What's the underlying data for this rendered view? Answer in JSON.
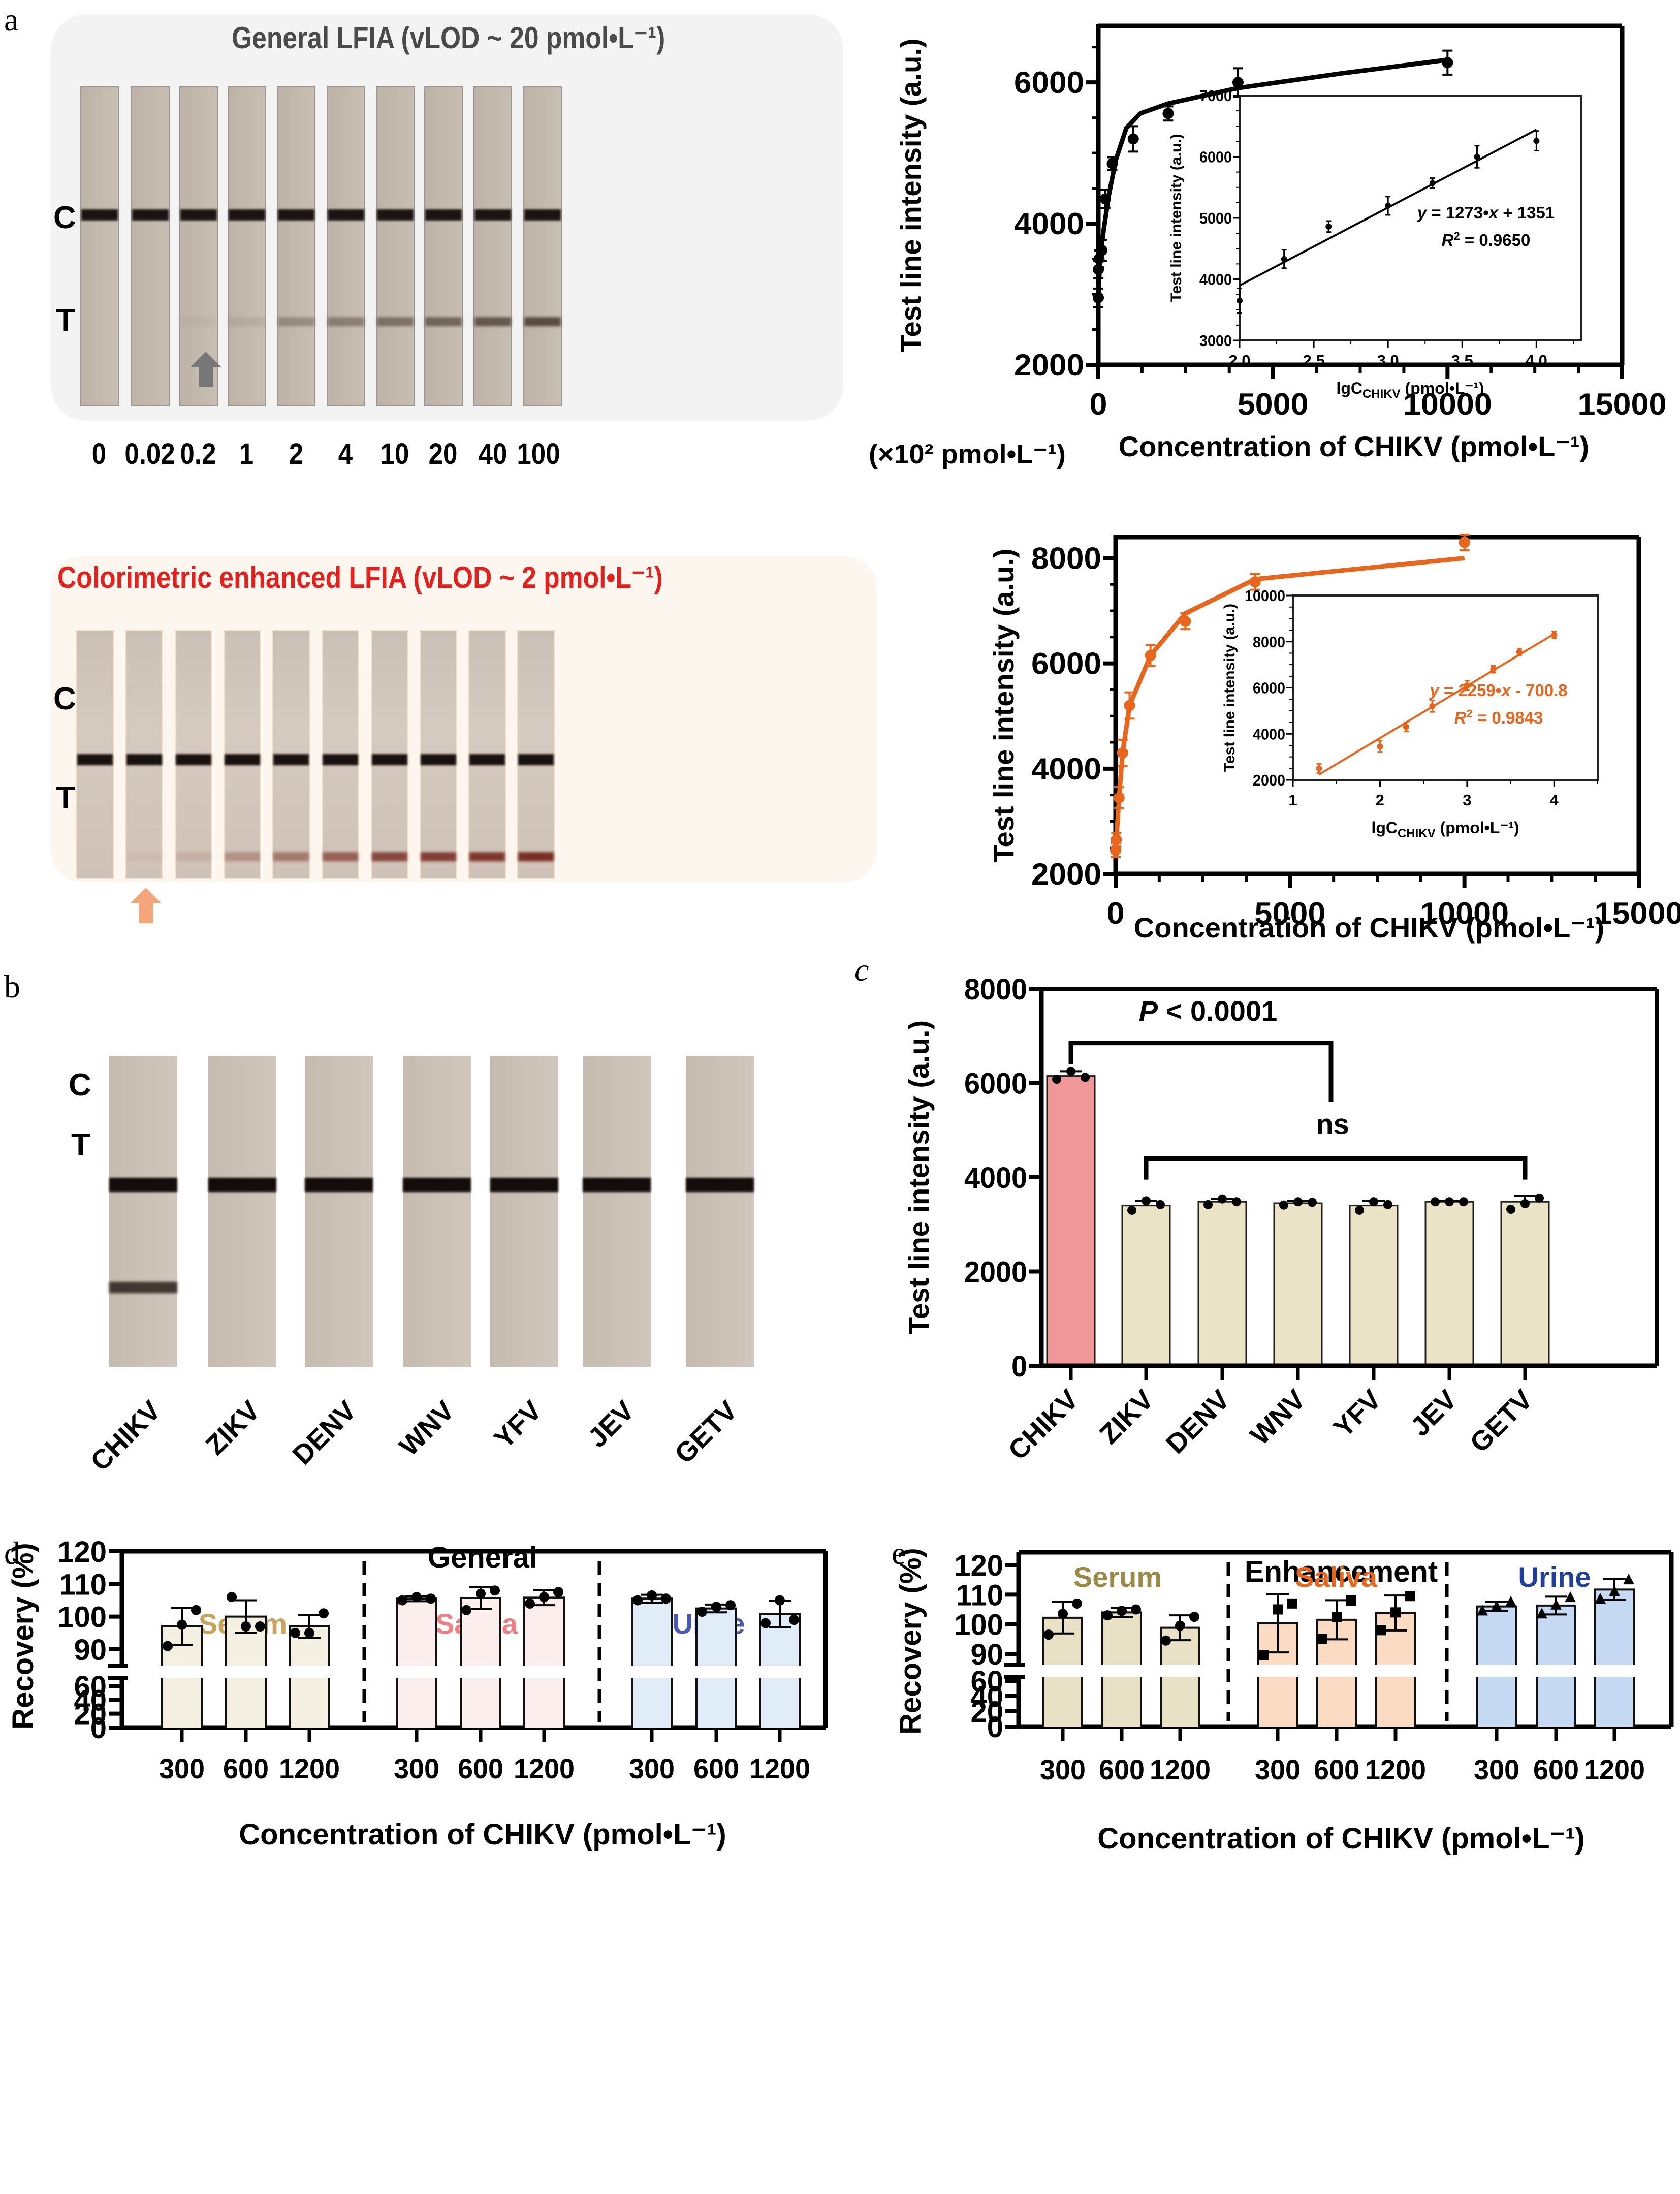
{
  "panel_labels": {
    "a": "a",
    "b": "b",
    "c": "c",
    "d": "d",
    "e": "e"
  },
  "panel_a": {
    "general_title": "General LFIA (vLOD ~ 20 pmol•L⁻¹)",
    "enhanced_title": "Colorimetric enhanced LFIA (vLOD ~ 2 pmol•L⁻¹)",
    "control_label": "C",
    "test_label": "T",
    "concentrations": [
      "0",
      "0.02",
      "0.2",
      "1",
      "2",
      "4",
      "10",
      "20",
      "40",
      "100"
    ],
    "concentration_unit": "(×10² pmol•L⁻¹)",
    "general_arrow_strip_index": 2,
    "enhanced_arrow_strip_index": 1,
    "general_t_line_intensity": [
      0,
      0,
      0.05,
      0.1,
      0.35,
      0.45,
      0.55,
      0.65,
      0.75,
      0.85
    ],
    "enhanced_t_line_intensity": [
      0,
      0.05,
      0.12,
      0.3,
      0.45,
      0.6,
      0.75,
      0.8,
      0.85,
      0.9
    ],
    "colors": {
      "general_title": "#4a4a4a",
      "enhanced_title": "#e3201b",
      "general_card": "#f3f3f3",
      "enhanced_card": "#fdf6ef",
      "general_arrow": "#777777",
      "enhanced_arrow": "#f4a57a"
    }
  },
  "panel_b": {
    "control_label": "C",
    "test_label": "T",
    "viruses": [
      "CHIKV",
      "ZIKV",
      "DENV",
      "WNV",
      "YFV",
      "JEV",
      "GETV"
    ],
    "t_line_visible": [
      true,
      false,
      false,
      false,
      false,
      false,
      false
    ]
  },
  "chart_data": [
    {
      "id": "a-general",
      "type": "scatter",
      "title": "",
      "xlabel": "Concentration of CHIKV (pmol•L⁻¹)",
      "ylabel": "Test line intensity (a.u.)",
      "xlim": [
        0,
        15000
      ],
      "ylim": [
        2000,
        6800
      ],
      "xticks": [
        0,
        5000,
        10000,
        15000
      ],
      "yticks": [
        2000,
        4000,
        6000
      ],
      "color": "#000000",
      "points": {
        "x": [
          0,
          2,
          20,
          100,
          200,
          400,
          1000,
          2000,
          4000,
          10000
        ],
        "y": [
          2950,
          3350,
          3500,
          3620,
          4350,
          4850,
          5200,
          5560,
          6000,
          6280
        ],
        "err": [
          130,
          120,
          120,
          150,
          130,
          90,
          180,
          100,
          200,
          170
        ]
      },
      "fit_curve": {
        "x": [
          0,
          50,
          150,
          300,
          500,
          800,
          1200,
          2000,
          4000,
          7000,
          10000
        ],
        "y": [
          2950,
          3500,
          3900,
          4400,
          4900,
          5350,
          5560,
          5700,
          5920,
          6130,
          6320
        ]
      },
      "inset": {
        "xlabel": "lgC",
        "xlabel_sub": "CHIKV",
        "xlabel_unit": " (pmol•L⁻¹)",
        "ylabel": "Test line intensity (a.u.)",
        "xlim": [
          2.0,
          4.3
        ],
        "ylim": [
          3000,
          7000
        ],
        "xticks": [
          "2.0",
          "2.5",
          "3.0",
          "3.5",
          "4.0"
        ],
        "yticks": [
          "3000",
          "4000",
          "5000",
          "6000",
          "7000"
        ],
        "x": [
          2.0,
          2.3,
          2.6,
          3.0,
          3.3,
          3.6,
          4.0
        ],
        "y": [
          3650,
          4330,
          4860,
          5200,
          5570,
          6000,
          6260
        ],
        "err": [
          200,
          150,
          90,
          150,
          80,
          180,
          160
        ],
        "equation": "y = 1273•x + 1351",
        "r2_label": "R",
        "r2_value": "2",
        "r2_text": " = 0.9650",
        "slope": 1273,
        "intercept": 1351
      }
    },
    {
      "id": "a-enhanced",
      "type": "scatter",
      "title": "",
      "xlabel": "Concentration of CHIKV (pmol•L⁻¹)",
      "ylabel": "Test line intensity (a.u.)",
      "xlim": [
        0,
        15000
      ],
      "ylim": [
        2000,
        8400
      ],
      "xticks": [
        0,
        5000,
        10000,
        15000
      ],
      "yticks": [
        2000,
        4000,
        6000,
        8000
      ],
      "color": "#e8651c",
      "points": {
        "x": [
          0,
          20,
          100,
          200,
          400,
          1000,
          2000,
          4000,
          10000
        ],
        "y": [
          2450,
          2650,
          3450,
          4300,
          5200,
          6150,
          6800,
          7550,
          8300
        ],
        "err": [
          130,
          130,
          200,
          250,
          250,
          200,
          150,
          150,
          150
        ]
      },
      "fit_curve": {
        "x": [
          0,
          20,
          100,
          200,
          400,
          1000,
          2000,
          4000,
          10000
        ],
        "y": [
          2450,
          2650,
          3450,
          4300,
          5200,
          6150,
          6950,
          7600,
          8000
        ]
      },
      "inset": {
        "xlabel": "lgC",
        "xlabel_sub": "CHIKV",
        "xlabel_unit": " (pmol•L⁻¹)",
        "ylabel": "Test line intensity (a.u.)",
        "xlim": [
          1,
          4.5
        ],
        "ylim": [
          2000,
          10000
        ],
        "xticks": [
          "1",
          "2",
          "3",
          "4"
        ],
        "yticks": [
          "2000",
          "4000",
          "6000",
          "8000",
          "10000"
        ],
        "x": [
          1.3,
          2.0,
          2.3,
          2.6,
          3.0,
          3.3,
          3.6,
          4.0
        ],
        "y": [
          2500,
          3450,
          4300,
          5200,
          6100,
          6800,
          7550,
          8300
        ],
        "err": [
          200,
          250,
          200,
          250,
          200,
          150,
          150,
          150
        ],
        "equation": "y = 2259•x - 700.8",
        "r2_label": "R",
        "r2_value": "2",
        "r2_text": " = 0.9843",
        "slope": 2259,
        "intercept": -700.8
      }
    },
    {
      "id": "c",
      "type": "bar",
      "title": "",
      "xlabel": "",
      "ylabel": "Test line intensity (a.u.)",
      "categories": [
        "CHIKV",
        "ZIKV",
        "DENV",
        "WNV",
        "YFV",
        "JEV",
        "GETV"
      ],
      "values": [
        6150,
        3400,
        3480,
        3450,
        3400,
        3480,
        3480
      ],
      "err": [
        100,
        100,
        60,
        50,
        100,
        20,
        130
      ],
      "points": [
        [
          6080,
          6250,
          6120
        ],
        [
          3300,
          3500,
          3420
        ],
        [
          3420,
          3540,
          3480
        ],
        [
          3410,
          3480,
          3470
        ],
        [
          3300,
          3480,
          3420
        ],
        [
          3480,
          3480,
          3480
        ],
        [
          3320,
          3440,
          3560
        ]
      ],
      "ylim": [
        0,
        8000
      ],
      "yticks": [
        0,
        2000,
        4000,
        6000,
        8000
      ],
      "colors": [
        "#f0979a",
        "#ebe3c6",
        "#ebe3c6",
        "#ebe3c6",
        "#ebe3c6",
        "#ebe3c6",
        "#ebe3c6"
      ],
      "annotations": {
        "p_label": "P",
        "p_text": " < 0.0001",
        "ns": "ns"
      }
    },
    {
      "id": "d",
      "type": "bar",
      "title": "General",
      "xlabel": "Concentration of CHIKV (pmol•L⁻¹)",
      "ylabel": "Recovery (%)",
      "groups": [
        {
          "name": "Serum",
          "color": "#c9a25c",
          "fill": "#f3efe1",
          "categories": [
            "300",
            "600",
            "1200"
          ],
          "values": [
            97.0,
            100.0,
            97.0
          ],
          "err": [
            5.7,
            5.0,
            3.5
          ],
          "points": [
            [
              91,
              97.5,
              102
            ],
            [
              106,
              97,
              97
            ],
            [
              95,
              95,
              101
            ]
          ]
        },
        {
          "name": "Saliva",
          "color": "#ef7f82",
          "fill": "#fdeeee",
          "categories": [
            "300",
            "600",
            "1200"
          ],
          "values": [
            105.5,
            105.7,
            105.8
          ],
          "err": [
            0.8,
            3.3,
            2.3
          ],
          "points": [
            [
              105,
              106,
              105.5
            ],
            [
              102,
              107,
              108
            ],
            [
              104,
              106,
              107.5
            ]
          ]
        },
        {
          "name": "Urine",
          "color": "#4a59b3",
          "fill": "#e0ecf8",
          "categories": [
            "300",
            "600",
            "1200"
          ],
          "values": [
            105.5,
            102.5,
            100.8
          ],
          "err": [
            1.2,
            1.2,
            4.0
          ],
          "points": [
            [
              105,
              106.5,
              105.5
            ],
            [
              101.5,
              103,
              103.5
            ],
            [
              98,
              105,
              99
            ]
          ]
        }
      ],
      "ylim": [
        0,
        120
      ],
      "axis_break": [
        70,
        85
      ],
      "yticks": [
        0,
        20,
        40,
        60,
        90,
        100,
        110,
        120
      ],
      "marker": "circle"
    },
    {
      "id": "e",
      "type": "bar",
      "title": "Enhancement",
      "xlabel": "Concentration of CHIKV (pmol•L⁻¹)",
      "ylabel": "Recovery (%)",
      "groups": [
        {
          "name": "Serum",
          "color": "#9a8a45",
          "fill": "#e8e1c5",
          "categories": [
            "300",
            "600",
            "1200"
          ],
          "values": [
            102.2,
            104.0,
            98.8
          ],
          "err": [
            5.3,
            1.5,
            4.2
          ],
          "points": [
            [
              96.5,
              103.5,
              107
            ],
            [
              103,
              104.5,
              105
            ],
            [
              94.5,
              99.5,
              102.5
            ]
          ]
        },
        {
          "name": "Saliva",
          "color": "#e8651c",
          "fill": "#fbdcc2",
          "categories": [
            "300",
            "600",
            "1200"
          ],
          "values": [
            100.3,
            101.5,
            103.8
          ],
          "err": [
            9.8,
            6.6,
            5.9
          ],
          "points": [
            [
              89.5,
              105,
              107
            ],
            [
              95,
              102.5,
              108
            ],
            [
              98,
              104,
              109.5
            ]
          ]
        },
        {
          "name": "Urine",
          "color": "#1e3f9a",
          "fill": "#c5daf2",
          "categories": [
            "300",
            "600",
            "1200"
          ],
          "values": [
            106.0,
            106.3,
            111.7
          ],
          "err": [
            1.5,
            3.0,
            3.5
          ],
          "points": [
            [
              104.5,
              106,
              107.5
            ],
            [
              103.5,
              106.5,
              109
            ],
            [
              108.5,
              111,
              115
            ]
          ]
        }
      ],
      "ylim": [
        0,
        125
      ],
      "axis_break": [
        65,
        85
      ],
      "yticks": [
        0,
        20,
        40,
        60,
        90,
        100,
        110,
        120
      ],
      "marker": "mixed"
    }
  ]
}
